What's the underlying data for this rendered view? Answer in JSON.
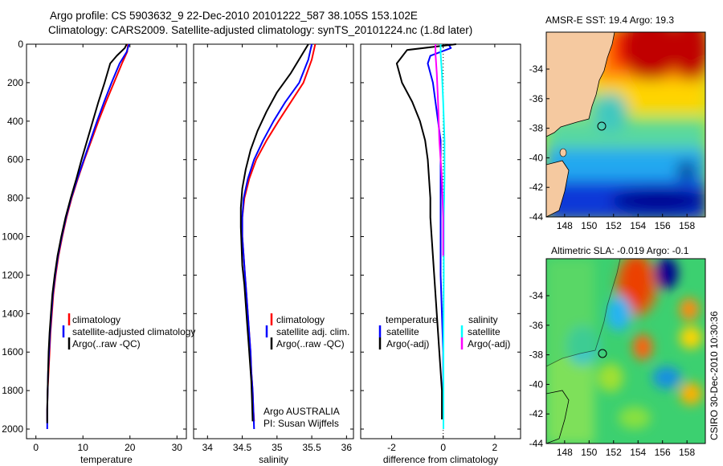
{
  "header": {
    "line1": "Argo profile: CS 5903632_9 22-Dec-2010 20101222_587 38.105S 153.102E",
    "line2": "Climatology: CARS2009. Satellite-adjusted climatology: synTS_20101224.nc (1.8d later)"
  },
  "credit": "CSIRO 30-Dec-2010 10:30:36",
  "colors": {
    "climatology": "#ff0000",
    "satellite": "#0000ff",
    "argo": "#000000",
    "satellite_sal": "#00ffff",
    "argo_sal": "#ff00ff",
    "land": "#f5c9a0"
  },
  "chart_data": [
    {
      "type": "line",
      "id": "temperature",
      "xlabel": "temperature",
      "xlim": [
        -2,
        32
      ],
      "ylim": [
        2050,
        0
      ],
      "xticks": [
        0,
        10,
        20,
        30
      ],
      "yticks": [
        0,
        200,
        400,
        600,
        800,
        1000,
        1200,
        1400,
        1600,
        1800,
        2000
      ],
      "legend": [
        "climatology",
        "satellite-adjusted climatology",
        "Argo(..raw -QC)"
      ],
      "series": [
        {
          "name": "climatology",
          "color": "#ff0000",
          "points": [
            [
              19.6,
              0
            ],
            [
              19.4,
              40
            ],
            [
              18.3,
              100
            ],
            [
              16.6,
              200
            ],
            [
              14.9,
              300
            ],
            [
              13.3,
              400
            ],
            [
              11.8,
              500
            ],
            [
              10.3,
              600
            ],
            [
              8.9,
              700
            ],
            [
              7.6,
              800
            ],
            [
              6.5,
              900
            ],
            [
              5.6,
              1000
            ],
            [
              4.8,
              1100
            ],
            [
              4.2,
              1200
            ],
            [
              3.7,
              1300
            ],
            [
              3.4,
              1400
            ],
            [
              3.1,
              1500
            ],
            [
              2.9,
              1600
            ],
            [
              2.7,
              1700
            ],
            [
              2.5,
              1800
            ],
            [
              2.4,
              1900
            ],
            [
              2.4,
              1960
            ]
          ]
        },
        {
          "name": "satellite-adjusted climatology",
          "color": "#0000ff",
          "points": [
            [
              19.8,
              0
            ],
            [
              19.3,
              40
            ],
            [
              17.8,
              100
            ],
            [
              16.1,
              200
            ],
            [
              14.5,
              300
            ],
            [
              13.0,
              400
            ],
            [
              11.6,
              500
            ],
            [
              10.2,
              600
            ],
            [
              8.8,
              700
            ],
            [
              7.5,
              800
            ],
            [
              6.4,
              900
            ],
            [
              5.5,
              1000
            ],
            [
              4.7,
              1100
            ],
            [
              4.1,
              1200
            ],
            [
              3.6,
              1300
            ],
            [
              3.3,
              1400
            ],
            [
              3.0,
              1500
            ],
            [
              2.8,
              1600
            ],
            [
              2.6,
              1700
            ],
            [
              2.5,
              1800
            ],
            [
              2.4,
              1900
            ],
            [
              2.4,
              2000
            ]
          ]
        },
        {
          "name": "Argo(..raw -QC)",
          "color": "#000000",
          "points": [
            [
              19.3,
              0
            ],
            [
              18.9,
              20
            ],
            [
              17.2,
              60
            ],
            [
              15.8,
              100
            ],
            [
              14.6,
              200
            ],
            [
              13.3,
              300
            ],
            [
              12.1,
              400
            ],
            [
              10.9,
              500
            ],
            [
              9.7,
              600
            ],
            [
              8.6,
              700
            ],
            [
              7.4,
              800
            ],
            [
              6.3,
              900
            ],
            [
              5.4,
              1000
            ],
            [
              4.6,
              1100
            ],
            [
              4.0,
              1200
            ],
            [
              3.5,
              1300
            ],
            [
              3.2,
              1400
            ],
            [
              2.9,
              1500
            ],
            [
              2.7,
              1600
            ],
            [
              2.6,
              1700
            ],
            [
              2.5,
              1800
            ],
            [
              2.4,
              1900
            ],
            [
              2.4,
              1970
            ]
          ]
        }
      ]
    },
    {
      "type": "line",
      "id": "salinity",
      "xlabel": "salinity",
      "xlim": [
        33.8,
        36.1
      ],
      "ylim": [
        2050,
        0
      ],
      "xticks": [
        34,
        34.5,
        35,
        35.5,
        36
      ],
      "legend": [
        "climatology",
        "satellite adj. clim.",
        "Argo(..raw -QC)"
      ],
      "annotation": [
        "Argo AUSTRALIA",
        "PI: Susan Wijffels"
      ],
      "series": [
        {
          "name": "climatology",
          "color": "#ff0000",
          "points": [
            [
              35.55,
              0
            ],
            [
              35.5,
              80
            ],
            [
              35.38,
              200
            ],
            [
              35.2,
              300
            ],
            [
              35.02,
              400
            ],
            [
              34.85,
              500
            ],
            [
              34.7,
              600
            ],
            [
              34.6,
              700
            ],
            [
              34.53,
              800
            ],
            [
              34.5,
              900
            ],
            [
              34.5,
              1000
            ],
            [
              34.52,
              1100
            ],
            [
              34.54,
              1200
            ],
            [
              34.56,
              1300
            ],
            [
              34.58,
              1400
            ],
            [
              34.6,
              1500
            ],
            [
              34.62,
              1600
            ],
            [
              34.63,
              1700
            ],
            [
              34.65,
              1800
            ],
            [
              34.66,
              1900
            ],
            [
              34.67,
              1960
            ]
          ]
        },
        {
          "name": "satellite adj. clim.",
          "color": "#0000ff",
          "points": [
            [
              35.5,
              0
            ],
            [
              35.45,
              80
            ],
            [
              35.32,
              200
            ],
            [
              35.12,
              300
            ],
            [
              34.95,
              400
            ],
            [
              34.8,
              500
            ],
            [
              34.67,
              600
            ],
            [
              34.58,
              700
            ],
            [
              34.52,
              800
            ],
            [
              34.5,
              900
            ],
            [
              34.5,
              1000
            ],
            [
              34.52,
              1100
            ],
            [
              34.54,
              1200
            ],
            [
              34.56,
              1300
            ],
            [
              34.58,
              1400
            ],
            [
              34.6,
              1500
            ],
            [
              34.62,
              1600
            ],
            [
              34.63,
              1700
            ],
            [
              34.65,
              1800
            ],
            [
              34.66,
              1900
            ],
            [
              34.67,
              2000
            ]
          ]
        },
        {
          "name": "Argo(..raw -QC)",
          "color": "#000000",
          "points": [
            [
              35.45,
              0
            ],
            [
              35.35,
              60
            ],
            [
              35.2,
              150
            ],
            [
              35.0,
              250
            ],
            [
              34.85,
              350
            ],
            [
              34.72,
              450
            ],
            [
              34.62,
              550
            ],
            [
              34.55,
              650
            ],
            [
              34.5,
              750
            ],
            [
              34.48,
              850
            ],
            [
              34.48,
              950
            ],
            [
              34.49,
              1050
            ],
            [
              34.5,
              1150
            ],
            [
              34.53,
              1250
            ],
            [
              34.55,
              1350
            ],
            [
              34.57,
              1450
            ],
            [
              34.59,
              1550
            ],
            [
              34.61,
              1650
            ],
            [
              34.63,
              1750
            ],
            [
              34.64,
              1850
            ],
            [
              34.65,
              1960
            ]
          ]
        }
      ]
    },
    {
      "type": "line",
      "id": "difference",
      "xlabel": "difference from climatology",
      "xlim": [
        -3.2,
        3.0
      ],
      "ylim": [
        2050,
        0
      ],
      "xticks": [
        -2,
        0,
        2
      ],
      "legend_headers": [
        "temperature",
        "salinity"
      ],
      "legend": [
        "satellite",
        "Argo(-adj)",
        "satellite",
        "Argo(-adj)"
      ],
      "series": [
        {
          "name": "temperature satellite",
          "color": "#0000ff",
          "points": [
            [
              0.2,
              0
            ],
            [
              0.3,
              20
            ],
            [
              -0.5,
              60
            ],
            [
              -0.6,
              100
            ],
            [
              -0.4,
              200
            ],
            [
              -0.3,
              300
            ],
            [
              -0.2,
              400
            ],
            [
              -0.1,
              500
            ],
            [
              -0.1,
              600
            ],
            [
              -0.1,
              700
            ],
            [
              -0.1,
              800
            ],
            [
              -0.1,
              1000
            ],
            [
              -0.1,
              1200
            ],
            [
              -0.05,
              1400
            ],
            [
              0,
              1600
            ],
            [
              0,
              1800
            ],
            [
              0,
              1950
            ]
          ]
        },
        {
          "name": "temperature Argo(-adj)",
          "color": "#000000",
          "points": [
            [
              0.5,
              0
            ],
            [
              -1.4,
              30
            ],
            [
              -1.8,
              100
            ],
            [
              -1.6,
              200
            ],
            [
              -1.2,
              300
            ],
            [
              -0.9,
              400
            ],
            [
              -0.7,
              500
            ],
            [
              -0.6,
              600
            ],
            [
              -0.55,
              700
            ],
            [
              -0.5,
              800
            ],
            [
              -0.5,
              900
            ],
            [
              -0.45,
              1000
            ],
            [
              -0.4,
              1100
            ],
            [
              -0.35,
              1200
            ],
            [
              -0.3,
              1300
            ],
            [
              -0.25,
              1400
            ],
            [
              -0.2,
              1500
            ],
            [
              -0.15,
              1600
            ],
            [
              -0.1,
              1700
            ],
            [
              -0.05,
              1800
            ],
            [
              -0.05,
              1900
            ],
            [
              -0.05,
              1950
            ]
          ]
        },
        {
          "name": "salinity satellite",
          "color": "#00ffff",
          "points": [
            [
              -0.1,
              0
            ],
            [
              -0.1,
              50
            ],
            [
              -0.05,
              150
            ],
            [
              0,
              300
            ],
            [
              0.05,
              500
            ],
            [
              0.05,
              700
            ],
            [
              0.02,
              900
            ],
            [
              0.02,
              1200
            ],
            [
              0.01,
              1500
            ],
            [
              0.01,
              1800
            ],
            [
              0.01,
              2000
            ]
          ]
        },
        {
          "name": "salinity Argo(-adj)",
          "color": "#ff00ff",
          "points": [
            [
              -0.3,
              0
            ],
            [
              -0.3,
              50
            ],
            [
              -0.25,
              150
            ],
            [
              -0.2,
              300
            ],
            [
              -0.15,
              500
            ],
            [
              -0.05,
              700
            ],
            [
              0,
              900
            ],
            [
              0,
              1100
            ]
          ]
        }
      ]
    },
    {
      "type": "heatmap",
      "id": "sst_map",
      "title": "AMSR-E SST: 19.4 Argo: 19.3",
      "xticks": [
        148,
        150,
        152,
        154,
        156,
        158
      ],
      "yticks": [
        -34,
        -36,
        -38,
        -40,
        -42,
        -44
      ],
      "xlim": [
        146.5,
        159.5
      ],
      "ylim": [
        -44,
        -31.5
      ],
      "profile": {
        "lon": 153.102,
        "lat": -38.105
      }
    },
    {
      "type": "heatmap",
      "id": "sla_map",
      "title": "Altimetric SLA: -0.019 Argo: -0.1",
      "xticks": [
        148,
        150,
        152,
        154,
        156,
        158
      ],
      "yticks": [
        -34,
        -36,
        -38,
        -40,
        -42,
        -44
      ],
      "xlim": [
        146.5,
        159.5
      ],
      "ylim": [
        -44,
        -31.5
      ],
      "profile": {
        "lon": 153.102,
        "lat": -38.105
      }
    }
  ]
}
